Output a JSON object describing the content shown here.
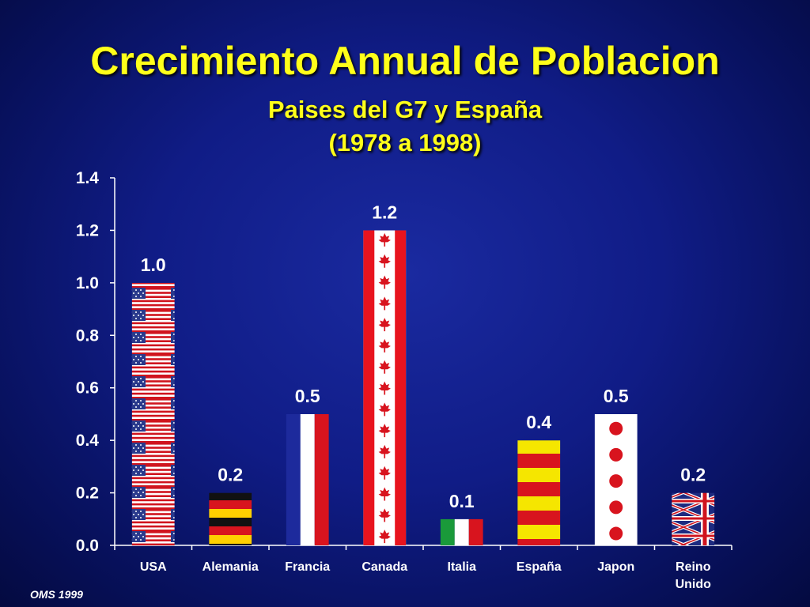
{
  "chart_data": {
    "type": "bar",
    "title": "Crecimiento Annual de Poblacion",
    "subtitle_line1": "Paises del G7 y España",
    "subtitle_line2": "(1978 a 1998)",
    "categories": [
      "USA",
      "Alemania",
      "Francia",
      "Canada",
      "Italia",
      "España",
      "Japon",
      "Reino Unido"
    ],
    "values": [
      1.0,
      0.2,
      0.5,
      1.2,
      0.1,
      0.4,
      0.5,
      0.2
    ],
    "value_labels": [
      "1.0",
      "0.2",
      "0.5",
      "1.2",
      "0.1",
      "0.4",
      "0.5",
      "0.2"
    ],
    "bar_styles": [
      "flag-usa",
      "flag-germany",
      "flag-france",
      "flag-canada",
      "flag-italy",
      "flag-spain",
      "flag-japan",
      "flag-uk"
    ],
    "yticks": [
      "0.0",
      "0.2",
      "0.4",
      "0.6",
      "0.8",
      "1.0",
      "1.2",
      "1.4"
    ],
    "ylim": [
      0,
      1.4
    ],
    "xlabel": "",
    "ylabel": "",
    "grid": false
  },
  "source": "OMS 1999",
  "colors": {
    "title": "#ffff1a",
    "axis": "#ffffff",
    "background": "#101c86"
  }
}
